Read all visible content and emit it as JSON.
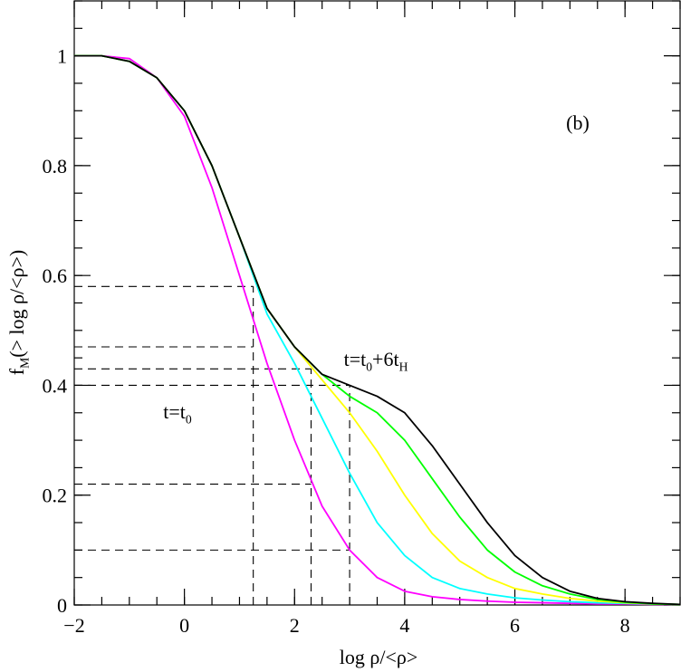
{
  "chart_data": {
    "type": "line",
    "x": [
      -2,
      -1.5,
      -1,
      -0.5,
      0,
      0.5,
      1,
      1.5,
      2,
      2.5,
      3,
      3.5,
      4,
      4.5,
      5,
      5.5,
      6,
      6.5,
      7,
      7.5,
      8,
      8.5,
      9
    ],
    "series": [
      {
        "color": "#ff00ff",
        "values": [
          1,
          1,
          0.995,
          0.96,
          0.89,
          0.76,
          0.6,
          0.44,
          0.3,
          0.18,
          0.1,
          0.05,
          0.025,
          0.015,
          0.01,
          0.007,
          0.005,
          0.004,
          0.003,
          0.002,
          0.002,
          0.001,
          0.001
        ]
      },
      {
        "color": "#00ffff",
        "values": [
          1,
          1,
          0.99,
          0.96,
          0.9,
          0.8,
          0.67,
          0.53,
          0.44,
          0.34,
          0.24,
          0.15,
          0.09,
          0.05,
          0.03,
          0.02,
          0.013,
          0.009,
          0.006,
          0.004,
          0.003,
          0.002,
          0.001
        ]
      },
      {
        "color": "#ffff00",
        "values": [
          1,
          1,
          0.99,
          0.96,
          0.9,
          0.8,
          0.67,
          0.54,
          0.47,
          0.41,
          0.35,
          0.28,
          0.2,
          0.13,
          0.08,
          0.05,
          0.03,
          0.02,
          0.012,
          0.007,
          0.004,
          0.002,
          0.001
        ]
      },
      {
        "color": "#00ff00",
        "values": [
          1,
          1,
          0.99,
          0.96,
          0.9,
          0.8,
          0.67,
          0.54,
          0.47,
          0.42,
          0.38,
          0.35,
          0.3,
          0.23,
          0.16,
          0.1,
          0.06,
          0.035,
          0.02,
          0.01,
          0.005,
          0.002,
          0.001
        ]
      },
      {
        "color": "#000000",
        "values": [
          1,
          1,
          0.99,
          0.96,
          0.9,
          0.8,
          0.67,
          0.54,
          0.47,
          0.42,
          0.4,
          0.38,
          0.35,
          0.29,
          0.22,
          0.15,
          0.09,
          0.05,
          0.025,
          0.012,
          0.006,
          0.003,
          0.001
        ]
      }
    ],
    "xlim": [
      -2,
      9
    ],
    "ylim": [
      0,
      1.1
    ],
    "xticks": [
      {
        "value": -2,
        "label": "−2"
      },
      0,
      2,
      4,
      6,
      8
    ],
    "yticks": [
      0,
      0.2,
      0.4,
      0.6,
      0.8,
      1
    ],
    "xminor_step": 0.5,
    "yminor_step": 0.05,
    "xlabel": "log  ρ/<ρ>",
    "ylabel_parts": [
      {
        "text": "f"
      },
      {
        "text": "M",
        "sub": true
      },
      {
        "text": "(> log ρ/<ρ>)"
      }
    ],
    "annotations": [
      {
        "parts": [
          {
            "text": "(b)"
          }
        ]
      },
      {
        "parts": [
          {
            "text": "t=t"
          },
          {
            "text": "0",
            "sub": true
          }
        ]
      },
      {
        "parts": [
          {
            "text": "t=t"
          },
          {
            "text": "0",
            "sub": true
          },
          {
            "text": "+6t"
          },
          {
            "text": "H",
            "sub": true
          }
        ]
      }
    ],
    "hlines": [
      [
        0.58,
        1.25
      ],
      [
        0.47,
        1.25
      ],
      [
        0.43,
        2.3
      ],
      [
        0.4,
        3
      ],
      [
        0.22,
        2.3
      ],
      [
        0.1,
        3
      ]
    ],
    "vlines": [
      [
        1.25,
        0.58
      ],
      [
        2.3,
        0.43
      ],
      [
        3,
        0.4
      ]
    ]
  }
}
